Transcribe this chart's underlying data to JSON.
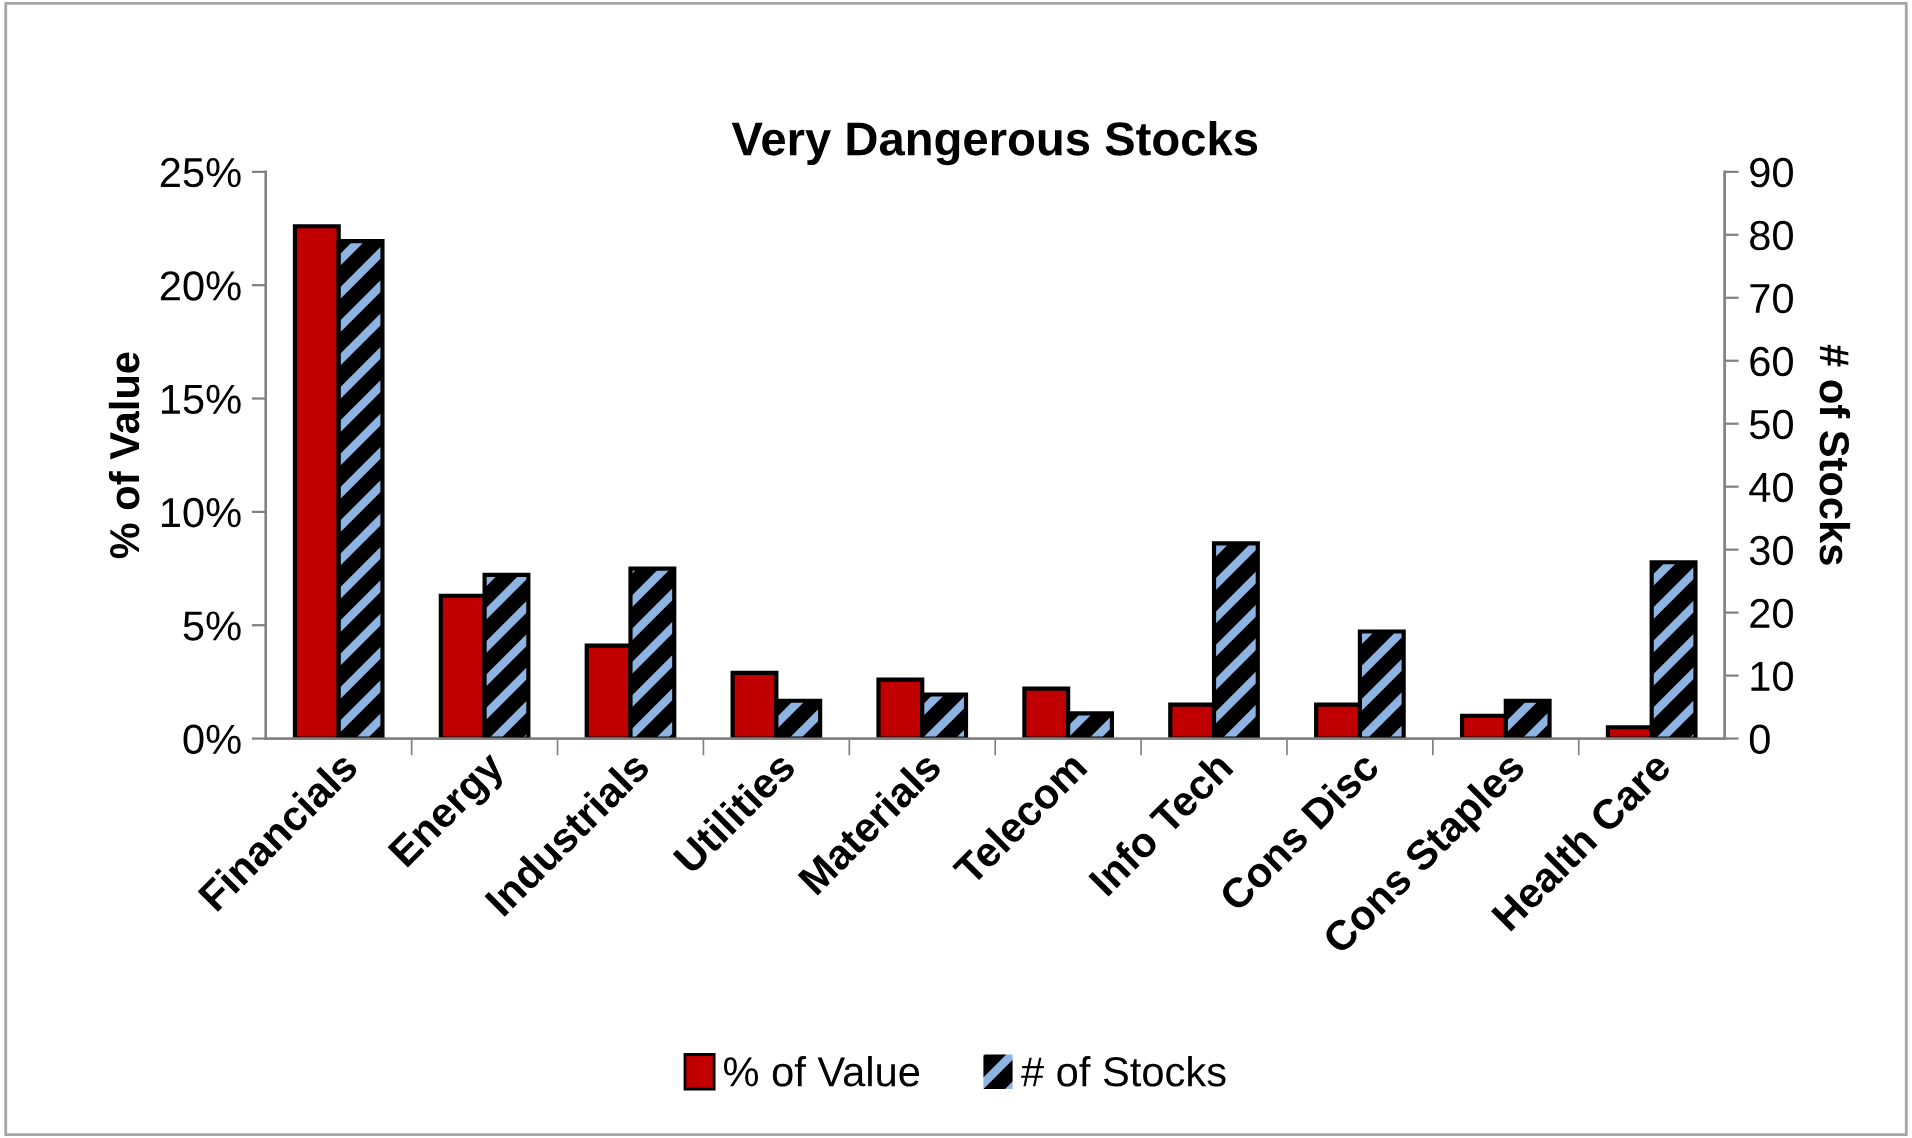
{
  "chart_data": {
    "type": "bar",
    "title": "Very Dangerous Stocks",
    "ylabel": "% of Value",
    "y2label": "# of Stocks",
    "categories": [
      "Financials",
      "Energy",
      "Industrials",
      "Utilities",
      "Materials",
      "Telecom",
      "Info Tech",
      "Cons Disc",
      "Cons Staples",
      "Health Care"
    ],
    "series": [
      {
        "name": "% of Value",
        "color": "#c00000",
        "values": [
          22.6,
          6.3,
          4.1,
          2.9,
          2.6,
          2.2,
          1.5,
          1.5,
          1.0,
          0.5
        ]
      },
      {
        "name": "# of Stocks",
        "color": "#8db4e2",
        "axis": "y2",
        "values": [
          79,
          26,
          27,
          6,
          7,
          4,
          31,
          17,
          6,
          28
        ]
      }
    ],
    "ylim": [
      0,
      25
    ],
    "yticks": [
      {
        "value": 0,
        "label": "0%"
      },
      {
        "value": 5,
        "label": "5%"
      },
      {
        "value": 10,
        "label": "10%"
      },
      {
        "value": 15,
        "label": "15%"
      },
      {
        "value": 20,
        "label": "20%"
      },
      {
        "value": 25,
        "label": "25%"
      }
    ],
    "y2lim": [
      0,
      90
    ],
    "y2ticks": [
      0,
      10,
      20,
      30,
      40,
      50,
      60,
      70,
      80,
      90
    ],
    "grid": false,
    "legend": "bottom"
  }
}
